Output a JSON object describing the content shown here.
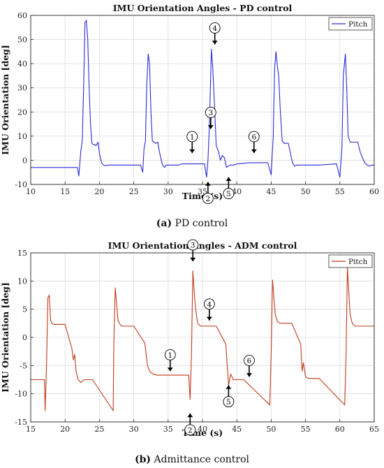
{
  "figure": {
    "caption_a_tag": "(a)",
    "caption_a_text": "PD control",
    "caption_b_tag": "(b)",
    "caption_b_text": "Admittance control"
  },
  "chart_data": [
    {
      "type": "line",
      "title": "IMU Orientation Angles - PD control",
      "xlabel": "Time (s)",
      "ylabel": "IMU Orientation [deg]",
      "xlim": [
        10,
        60
      ],
      "ylim": [
        -10,
        60
      ],
      "xticks": [
        10,
        15,
        20,
        25,
        30,
        35,
        40,
        45,
        50,
        55,
        60
      ],
      "yticks": [
        -10,
        0,
        10,
        20,
        30,
        40,
        50,
        60
      ],
      "grid": true,
      "legend": "top-right",
      "color": "#2b2bd6",
      "series": [
        {
          "name": "Pitch",
          "x": [
            10,
            16.8,
            17.0,
            17.3,
            17.5,
            17.7,
            17.9,
            18.1,
            18.3,
            18.5,
            18.7,
            18.9,
            19.1,
            19.3,
            19.5,
            19.8,
            20.0,
            20.3,
            20.6,
            20.9,
            21.2,
            21.5,
            26.0,
            26.3,
            26.5,
            26.7,
            26.9,
            27.1,
            27.3,
            27.5,
            27.7,
            28.0,
            28.2,
            28.5,
            28.7,
            29.0,
            29.2,
            29.5,
            29.7,
            30.0,
            31.0,
            31.5,
            32,
            35.3,
            35.6,
            35.8,
            36.0,
            36.2,
            36.3,
            36.5,
            36.8,
            37.0,
            37.3,
            37.6,
            37.9,
            38.2,
            38.5,
            38.7,
            39.0,
            39.3,
            39.6,
            40,
            42,
            44.5,
            45.0,
            45.3,
            45.5,
            45.7,
            45.9,
            46.1,
            46.3,
            46.6,
            46.9,
            47.2,
            47.5,
            47.8,
            48.1,
            48.4,
            48.7,
            49.0,
            49.3,
            49.6,
            52,
            54.5,
            55.0,
            55.3,
            55.5,
            55.8,
            56.0,
            56.2,
            56.5,
            56.8,
            57.2,
            57.6,
            58.0,
            58.3,
            58.6,
            59.0,
            59.3,
            59.6,
            60
          ],
          "y": [
            -3,
            -3,
            -6.5,
            4,
            8,
            30,
            57,
            58,
            50,
            30,
            15,
            7,
            6.5,
            6.5,
            6,
            7.5,
            3,
            -1,
            -2,
            -2.3,
            -2,
            -2,
            -2,
            -5,
            5,
            8,
            32,
            44,
            40,
            20,
            8,
            7.5,
            7,
            7.5,
            4,
            0,
            -2,
            -3,
            -2,
            -2,
            -2,
            -2,
            -1.5,
            -1.5,
            -7,
            0,
            14,
            35,
            46,
            38,
            20,
            6,
            4,
            0,
            2,
            1,
            -3,
            -2.5,
            -2,
            -2,
            -2,
            -1.5,
            -1,
            -1,
            -6,
            10,
            38,
            45,
            39,
            35,
            22,
            8,
            7,
            7,
            7,
            3,
            -1,
            -2.5,
            -2,
            -2,
            -2,
            -2,
            -2,
            -1.5,
            -7,
            5,
            35,
            44,
            30,
            10,
            7.5,
            7.5,
            7.5,
            7.5,
            3,
            1,
            -1,
            -2,
            -2.5,
            -2,
            -2
          ]
        }
      ],
      "annotations": [
        {
          "label": "1",
          "x": 33.5,
          "y": 3,
          "dir": "down"
        },
        {
          "label": "2",
          "x": 35.8,
          "y": -9,
          "dir": "up"
        },
        {
          "label": "3",
          "x": 36.2,
          "y": 13,
          "dir": "down"
        },
        {
          "label": "4",
          "x": 36.8,
          "y": 48,
          "dir": "down"
        },
        {
          "label": "5",
          "x": 38.8,
          "y": -7,
          "dir": "up"
        },
        {
          "label": "6",
          "x": 42.5,
          "y": 3,
          "dir": "down"
        }
      ]
    },
    {
      "type": "line",
      "title": "IMU Orientation Angles - ADM control",
      "xlabel": "Time (s)",
      "ylabel": "IMU Orientation [deg]",
      "xlim": [
        15,
        65
      ],
      "ylim": [
        -15,
        15
      ],
      "xticks": [
        15,
        20,
        25,
        30,
        35,
        40,
        45,
        50,
        55,
        60,
        65
      ],
      "yticks": [
        -15,
        -10,
        -5,
        0,
        5,
        10,
        15
      ],
      "grid": true,
      "legend": "top-right",
      "color": "#c0391b",
      "series": [
        {
          "name": "Pitch",
          "x": [
            15,
            17.0,
            17.1,
            17.3,
            17.5,
            17.7,
            17.9,
            18.1,
            18.3,
            18.6,
            19,
            20,
            21,
            21.2,
            21.4,
            21.6,
            21.9,
            22.3,
            22.8,
            23.3,
            24,
            27.0,
            27.1,
            27.3,
            27.5,
            27.7,
            27.9,
            28.2,
            28.6,
            29,
            30,
            31.6,
            31.8,
            32.0,
            32.3,
            32.8,
            33.4,
            34,
            38,
            38.2,
            38.4,
            38.6,
            38.8,
            39.0,
            39.3,
            39.7,
            40,
            41,
            42,
            43.4,
            43.6,
            43.8,
            44.1,
            44.5,
            45,
            46,
            49.8,
            50.0,
            50.2,
            50.4,
            50.6,
            50.9,
            51.3,
            52,
            53,
            54.3,
            54.5,
            54.7,
            55.0,
            55.5,
            56,
            57,
            60.7,
            60.9,
            61.1,
            61.3,
            61.5,
            61.8,
            62.2,
            63,
            64,
            65
          ],
          "y": [
            -7.5,
            -7.5,
            -13,
            -5,
            7,
            7.5,
            3,
            2.5,
            2.3,
            2.3,
            2.3,
            2.3,
            -2,
            -4,
            -3,
            -6,
            -7.5,
            -8,
            -7.5,
            -7.5,
            -7.5,
            -13,
            -1,
            8.8,
            6,
            3,
            2.5,
            2,
            2,
            2,
            2,
            -1,
            -3,
            -5,
            -6,
            -6.5,
            -6.7,
            -6.7,
            -6.7,
            -11,
            -3,
            11.8,
            8,
            5,
            2.5,
            2,
            2,
            2,
            2,
            -1.2,
            -5,
            -8.5,
            -6.5,
            -7.5,
            -7.5,
            -7.5,
            -12,
            -3,
            10.2,
            7,
            4,
            2.8,
            2.5,
            2.5,
            2.5,
            -1.2,
            -6,
            -4.5,
            -7,
            -7.3,
            -7.3,
            -7.3,
            -12,
            -3,
            12.5,
            8,
            4,
            2.5,
            2,
            2,
            2,
            2
          ]
        }
      ],
      "annotations": [
        {
          "label": "1",
          "x": 35.3,
          "y": -6,
          "dir": "down"
        },
        {
          "label": "2",
          "x": 38.2,
          "y": -13.5,
          "dir": "up"
        },
        {
          "label": "3",
          "x": 38.6,
          "y": 13.5,
          "dir": "down"
        },
        {
          "label": "4",
          "x": 41,
          "y": 3,
          "dir": "down"
        },
        {
          "label": "5",
          "x": 43.8,
          "y": -8.5,
          "dir": "up"
        },
        {
          "label": "6",
          "x": 46.8,
          "y": -7,
          "dir": "down"
        }
      ]
    }
  ]
}
